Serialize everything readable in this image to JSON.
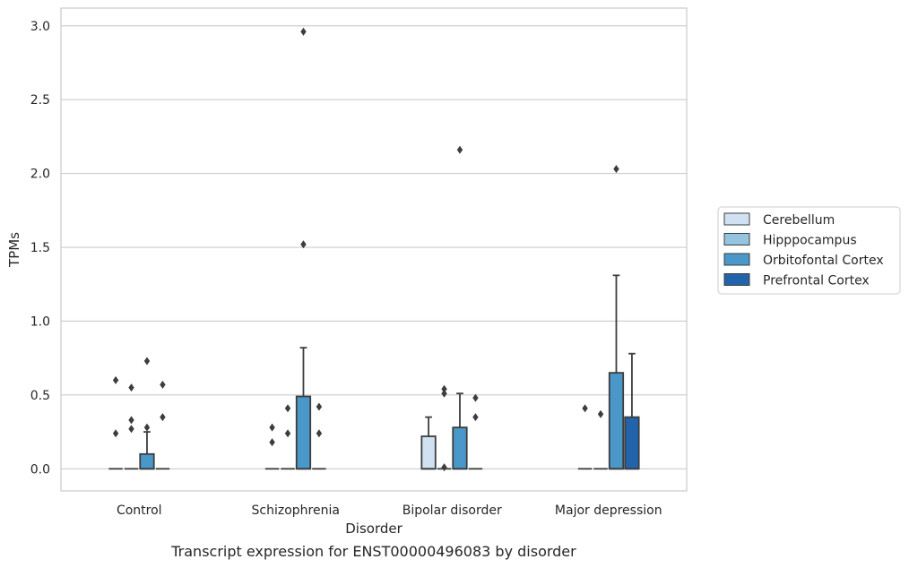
{
  "caption": "Transcript expression for ENST00000496083 by disorder",
  "chart_data": {
    "type": "box",
    "title": "",
    "xlabel": "Disorder",
    "ylabel": "TPMs",
    "ylim": [
      -0.15,
      3.12
    ],
    "yticks": [
      0.0,
      0.5,
      1.0,
      1.5,
      2.0,
      2.5,
      3.0
    ],
    "ytick_labels": [
      "0.0",
      "0.5",
      "1.0",
      "1.5",
      "2.0",
      "2.5",
      "3.0"
    ],
    "grid": "horizontal",
    "legend_position": "right",
    "categories": [
      "Control",
      "Schizophrenia",
      "Bipolar disorder",
      "Major depression"
    ],
    "series": [
      {
        "name": "Cerebellum",
        "color": "#d0e1f2",
        "boxes": [
          {
            "q1": 0,
            "median": 0,
            "q3": 0,
            "whisker_low": 0,
            "whisker_high": 0,
            "outliers": [
              0.24,
              0.6
            ]
          },
          {
            "q1": 0,
            "median": 0,
            "q3": 0,
            "whisker_low": 0,
            "whisker_high": 0,
            "outliers": [
              0.18,
              0.28
            ]
          },
          {
            "q1": 0,
            "median": 0,
            "q3": 0.22,
            "whisker_low": 0,
            "whisker_high": 0.35,
            "outliers": []
          },
          {
            "q1": 0,
            "median": 0,
            "q3": 0,
            "whisker_low": 0,
            "whisker_high": 0,
            "outliers": [
              0.41
            ]
          }
        ]
      },
      {
        "name": "Hipppocampus",
        "color": "#94c4df",
        "boxes": [
          {
            "q1": 0,
            "median": 0,
            "q3": 0,
            "whisker_low": 0,
            "whisker_high": 0,
            "outliers": [
              0.27,
              0.33,
              0.55
            ]
          },
          {
            "q1": 0,
            "median": 0,
            "q3": 0,
            "whisker_low": 0,
            "whisker_high": 0,
            "outliers": [
              0.24,
              0.41
            ]
          },
          {
            "q1": 0,
            "median": 0,
            "q3": 0,
            "whisker_low": 0,
            "whisker_high": 0,
            "outliers": [
              0.01,
              0.51,
              0.54
            ]
          },
          {
            "q1": 0,
            "median": 0,
            "q3": 0,
            "whisker_low": 0,
            "whisker_high": 0,
            "outliers": [
              0.37
            ]
          }
        ]
      },
      {
        "name": "Orbitofontal Cortex",
        "color": "#4a98c9",
        "boxes": [
          {
            "q1": 0,
            "median": 0,
            "q3": 0.1,
            "whisker_low": 0,
            "whisker_high": 0.25,
            "outliers": [
              0.28,
              0.73
            ]
          },
          {
            "q1": 0,
            "median": 0,
            "q3": 0.49,
            "whisker_low": 0,
            "whisker_high": 0.82,
            "outliers": [
              1.52,
              2.96
            ]
          },
          {
            "q1": 0,
            "median": 0,
            "q3": 0.28,
            "whisker_low": 0,
            "whisker_high": 0.51,
            "outliers": [
              2.16
            ]
          },
          {
            "q1": 0,
            "median": 0,
            "q3": 0.65,
            "whisker_low": 0,
            "whisker_high": 1.31,
            "outliers": [
              2.03
            ]
          }
        ]
      },
      {
        "name": "Prefrontal Cortex",
        "color": "#2164ab",
        "boxes": [
          {
            "q1": 0,
            "median": 0,
            "q3": 0,
            "whisker_low": 0,
            "whisker_high": 0,
            "outliers": [
              0.35,
              0.57
            ]
          },
          {
            "q1": 0,
            "median": 0,
            "q3": 0,
            "whisker_low": 0,
            "whisker_high": 0,
            "outliers": [
              0.24,
              0.42
            ]
          },
          {
            "q1": 0,
            "median": 0,
            "q3": 0,
            "whisker_low": 0,
            "whisker_high": 0,
            "outliers": [
              0.35,
              0.48
            ]
          },
          {
            "q1": 0,
            "median": 0,
            "q3": 0.35,
            "whisker_low": 0,
            "whisker_high": 0.78,
            "outliers": []
          }
        ]
      }
    ]
  }
}
